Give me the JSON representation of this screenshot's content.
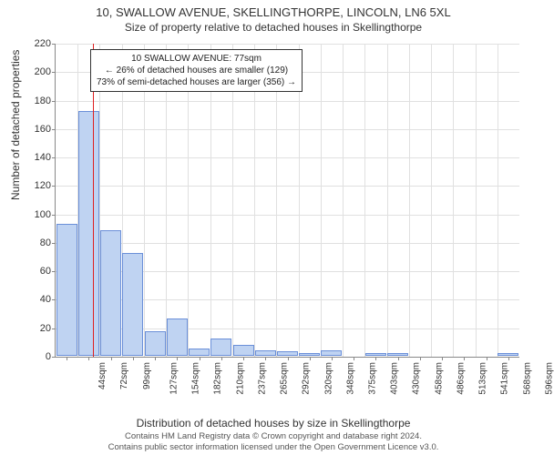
{
  "title_line1": "10, SWALLOW AVENUE, SKELLINGTHORPE, LINCOLN, LN6 5XL",
  "title_line2": "Size of property relative to detached houses in Skellingthorpe",
  "y_axis_label": "Number of detached properties",
  "x_axis_label": "Distribution of detached houses by size in Skellingthorpe",
  "footer_line1": "Contains HM Land Registry data © Crown copyright and database right 2024.",
  "footer_line2": "Contains public sector information licensed under the Open Government Licence v3.0.",
  "annotation": {
    "line1": "10 SWALLOW AVENUE: 77sqm",
    "line2": "← 26% of detached houses are smaller (129)",
    "line3": "73% of semi-detached houses are larger (356) →"
  },
  "chart": {
    "type": "histogram",
    "ylim": [
      0,
      220
    ],
    "ytick_step": 20,
    "bar_fill": "#bfd3f2",
    "bar_stroke": "#6a8fd8",
    "grid_color": "#e0e0e0",
    "background_color": "#ffffff",
    "marker_color": "#e02020",
    "marker_x_index": 1.2,
    "x_labels": [
      "44sqm",
      "72sqm",
      "99sqm",
      "127sqm",
      "154sqm",
      "182sqm",
      "210sqm",
      "237sqm",
      "265sqm",
      "292sqm",
      "320sqm",
      "348sqm",
      "375sqm",
      "403sqm",
      "430sqm",
      "458sqm",
      "486sqm",
      "513sqm",
      "541sqm",
      "568sqm",
      "596sqm"
    ],
    "values": [
      93,
      172,
      88,
      72,
      17,
      26,
      5,
      12,
      8,
      4,
      3,
      2,
      4,
      0,
      2,
      2,
      0,
      0,
      0,
      0,
      2
    ],
    "bar_width_ratio": 0.95
  }
}
